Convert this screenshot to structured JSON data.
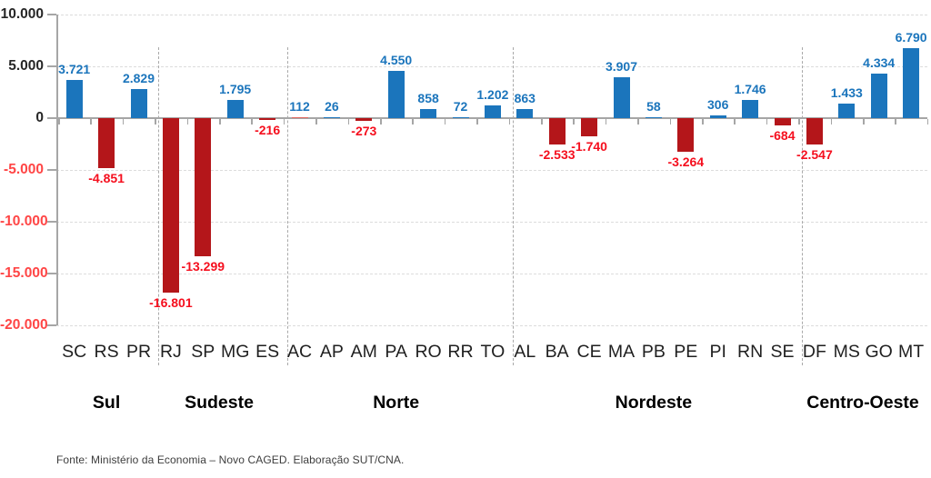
{
  "chart_data": {
    "type": "bar",
    "title": "",
    "ylabel": "",
    "xlabel": "",
    "ylim": [
      -20000,
      10000
    ],
    "grid": "dashed-horizontal",
    "y_axis": {
      "ticks": [
        10000,
        5000,
        0,
        -5000,
        -10000,
        -15000,
        -20000
      ],
      "tick_labels": [
        "10.000",
        "5.000",
        "0",
        "-5.000",
        "-10.000",
        "-15.000",
        "-20.000"
      ]
    },
    "regions": [
      {
        "name": "Sul",
        "states": [
          {
            "label": "SC",
            "value": 3721,
            "value_label": "3.721"
          },
          {
            "label": "RS",
            "value": -4851,
            "value_label": "-4.851"
          },
          {
            "label": "PR",
            "value": 2829,
            "value_label": "2.829"
          }
        ]
      },
      {
        "name": "Sudeste",
        "states": [
          {
            "label": "RJ",
            "value": -16801,
            "value_label": "-16.801"
          },
          {
            "label": "SP",
            "value": -13299,
            "value_label": "-13.299"
          },
          {
            "label": "MG",
            "value": 1795,
            "value_label": "1.795"
          },
          {
            "label": "ES",
            "value": -216,
            "value_label": "-216"
          }
        ]
      },
      {
        "name": "Norte",
        "states": [
          {
            "label": "AC",
            "value": 112,
            "value_label": "112",
            "bar_color": "#e0685f"
          },
          {
            "label": "AP",
            "value": 26,
            "value_label": "26"
          },
          {
            "label": "AM",
            "value": -273,
            "value_label": "-273"
          },
          {
            "label": "PA",
            "value": 4550,
            "value_label": "4.550"
          },
          {
            "label": "RO",
            "value": 858,
            "value_label": "858"
          },
          {
            "label": "RR",
            "value": 72,
            "value_label": "72"
          },
          {
            "label": "TO",
            "value": 1202,
            "value_label": "1.202"
          }
        ]
      },
      {
        "name": "Nordeste",
        "states": [
          {
            "label": "AL",
            "value": 863,
            "value_label": "863"
          },
          {
            "label": "BA",
            "value": -2533,
            "value_label": "-2.533"
          },
          {
            "label": "CE",
            "value": -1740,
            "value_label": "-1.740"
          },
          {
            "label": "MA",
            "value": 3907,
            "value_label": "3.907"
          },
          {
            "label": "PB",
            "value": 58,
            "value_label": "58"
          },
          {
            "label": "PE",
            "value": -3264,
            "value_label": "-3.264"
          },
          {
            "label": "PI",
            "value": 306,
            "value_label": "306"
          },
          {
            "label": "RN",
            "value": 1746,
            "value_label": "1.746"
          },
          {
            "label": "SE",
            "value": -684,
            "value_label": "-684"
          }
        ]
      },
      {
        "name": "Centro-Oeste",
        "states": [
          {
            "label": "DF",
            "value": -2547,
            "value_label": "-2.547"
          },
          {
            "label": "MS",
            "value": 1433,
            "value_label": "1.433"
          },
          {
            "label": "GO",
            "value": 4334,
            "value_label": "4.334"
          },
          {
            "label": "MT",
            "value": 6790,
            "value_label": "6.790"
          }
        ]
      }
    ],
    "colors": {
      "positive_bar": "#1b75bc",
      "negative_bar": "#b4161a",
      "positive_value_label": "#1b75bc",
      "negative_value_label": "#f50f1e",
      "axis_label": "#262626",
      "axis_label_negative": "#ff4545",
      "grid_line": "#dcdcdc",
      "axis_line": "#a6a6a6",
      "region_separator": "#a9a9a9"
    },
    "legend": null
  },
  "footer": {
    "source": "Fonte: Ministério da Economia – Novo CAGED. Elaboração SUT/CNA."
  }
}
